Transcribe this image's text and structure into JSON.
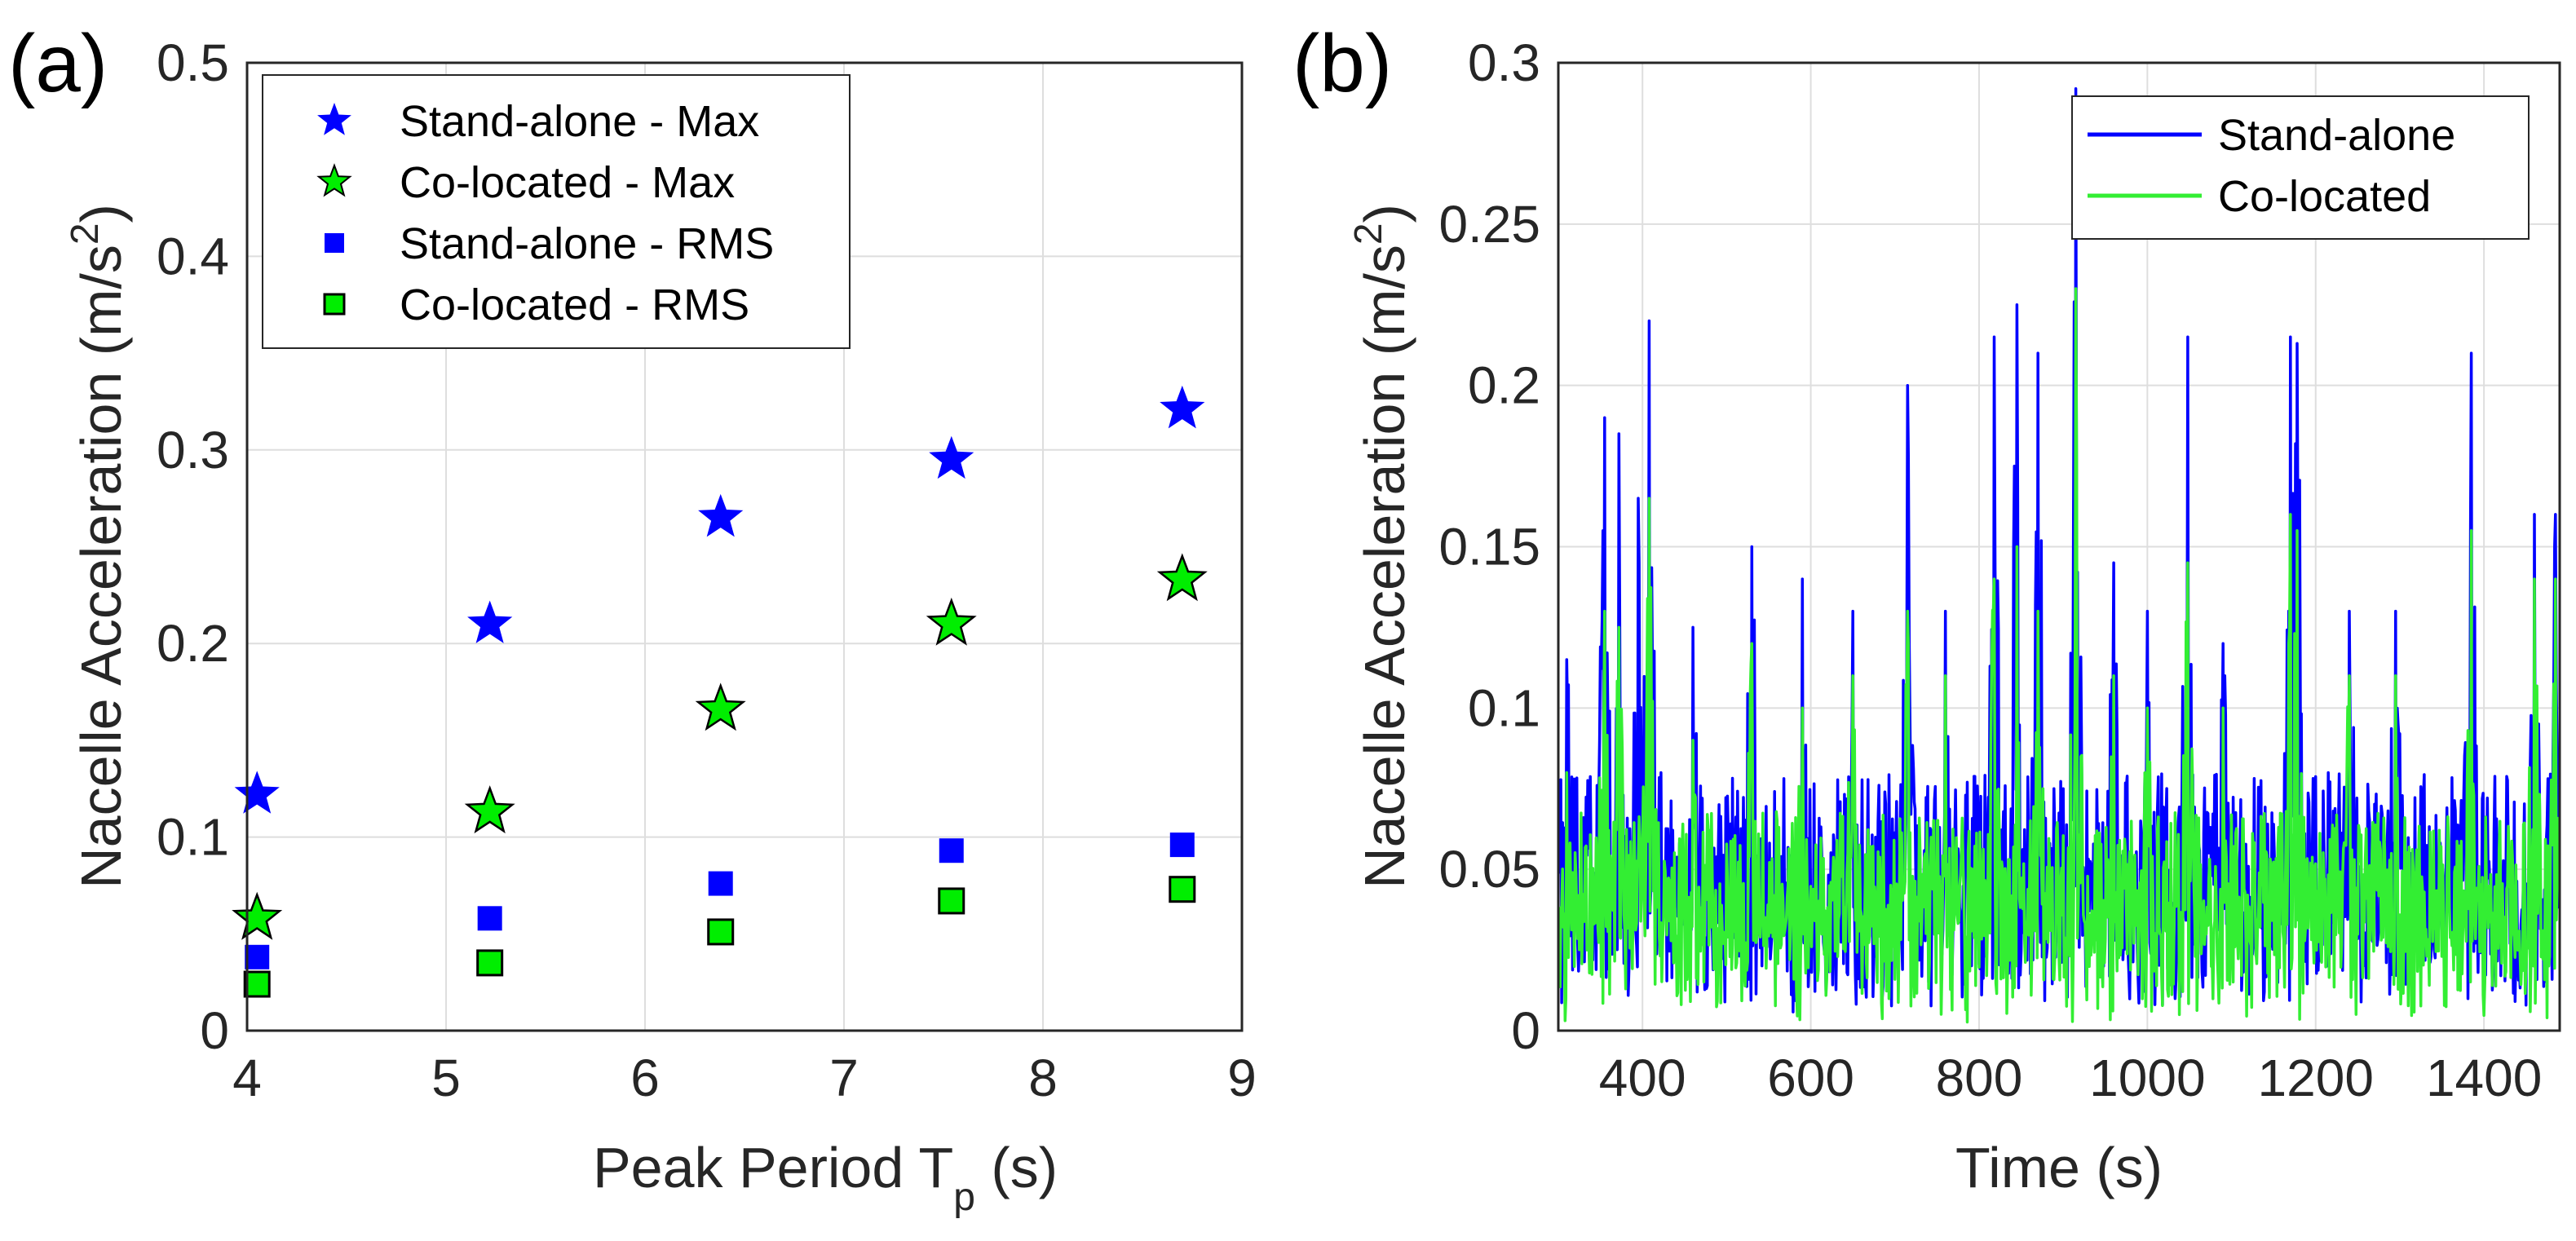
{
  "chart_data": [
    {
      "type": "scatter",
      "panel_label": "(a)",
      "title": "",
      "xlabel": "Peak Period T",
      "xlabel_subscript": "p",
      "xlabel_suffix": " (s)",
      "ylabel": "Nacelle Acceleration (m/s",
      "ylabel_superscript": "2",
      "ylabel_suffix": ")",
      "xlim": [
        4,
        9
      ],
      "ylim": [
        0,
        0.5
      ],
      "xticks": [
        "4",
        "5",
        "6",
        "7",
        "8",
        "9"
      ],
      "yticks": [
        "0",
        "0.1",
        "0.2",
        "0.3",
        "0.4",
        "0.5"
      ],
      "grid": true,
      "legend_position": "top-left",
      "x": [
        4.05,
        5.22,
        6.38,
        7.54,
        8.7
      ],
      "series": [
        {
          "name": "Stand-alone - Max",
          "marker": "star",
          "size": "large",
          "color": "#0000ff",
          "values": [
            0.122,
            0.21,
            0.265,
            0.295,
            0.321
          ]
        },
        {
          "name": "Co-located - Max",
          "marker": "star",
          "size": "large",
          "color": "#00ee00",
          "edge": "#000000",
          "values": [
            0.058,
            0.113,
            0.166,
            0.21,
            0.233
          ]
        },
        {
          "name": "Stand-alone - RMS",
          "marker": "square",
          "size": "small",
          "color": "#0000ff",
          "values": [
            0.038,
            0.058,
            0.076,
            0.093,
            0.096
          ]
        },
        {
          "name": "Co-located - RMS",
          "marker": "square",
          "size": "small",
          "color": "#00ee00",
          "edge": "#000000",
          "values": [
            0.024,
            0.035,
            0.051,
            0.067,
            0.073
          ]
        }
      ]
    },
    {
      "type": "line",
      "panel_label": "(b)",
      "title": "",
      "xlabel": "Time (s)",
      "ylabel": "Nacelle Acceleration (m/s",
      "ylabel_superscript": "2",
      "ylabel_suffix": ")",
      "xlim": [
        300,
        1490
      ],
      "ylim": [
        0,
        0.3
      ],
      "xticks": [
        "400",
        "600",
        "800",
        "1000",
        "1200",
        "1400"
      ],
      "xtick_values": [
        400,
        600,
        800,
        1000,
        1200,
        1400
      ],
      "yticks": [
        "0",
        "0.05",
        "0.1",
        "0.15",
        "0.2",
        "0.25",
        "0.3"
      ],
      "grid": true,
      "legend_position": "top-right",
      "series": [
        {
          "name": "Stand-alone",
          "color": "#0000ff",
          "peak_values": [
            [
              310,
              0.115
            ],
            [
              355,
              0.19
            ],
            [
              372,
              0.185
            ],
            [
              395,
              0.165
            ],
            [
              408,
              0.22
            ],
            [
              460,
              0.125
            ],
            [
              530,
              0.15
            ],
            [
              590,
              0.14
            ],
            [
              650,
              0.13
            ],
            [
              715,
              0.2
            ],
            [
              760,
              0.13
            ],
            [
              818,
              0.215
            ],
            [
              845,
              0.225
            ],
            [
              870,
              0.21
            ],
            [
              915,
              0.292
            ],
            [
              960,
              0.145
            ],
            [
              1000,
              0.13
            ],
            [
              1048,
              0.215
            ],
            [
              1090,
              0.12
            ],
            [
              1170,
              0.215
            ],
            [
              1178,
              0.213
            ],
            [
              1240,
              0.13
            ],
            [
              1295,
              0.13
            ],
            [
              1385,
              0.21
            ],
            [
              1460,
              0.16
            ],
            [
              1485,
              0.16
            ]
          ],
          "range": [
            0.005,
            0.292
          ]
        },
        {
          "name": "Co-located",
          "color": "#33ee33",
          "peak_values": [
            [
              310,
              0.08
            ],
            [
              355,
              0.13
            ],
            [
              372,
              0.125
            ],
            [
              408,
              0.165
            ],
            [
              460,
              0.09
            ],
            [
              530,
              0.12
            ],
            [
              590,
              0.1
            ],
            [
              650,
              0.11
            ],
            [
              715,
              0.13
            ],
            [
              760,
              0.11
            ],
            [
              818,
              0.14
            ],
            [
              845,
              0.15
            ],
            [
              870,
              0.13
            ],
            [
              915,
              0.23
            ],
            [
              960,
              0.11
            ],
            [
              1000,
              0.1
            ],
            [
              1048,
              0.145
            ],
            [
              1090,
              0.1
            ],
            [
              1170,
              0.16
            ],
            [
              1178,
              0.155
            ],
            [
              1240,
              0.11
            ],
            [
              1295,
              0.11
            ],
            [
              1385,
              0.155
            ],
            [
              1460,
              0.14
            ],
            [
              1485,
              0.14
            ]
          ],
          "range": [
            0.002,
            0.23
          ]
        }
      ]
    }
  ]
}
